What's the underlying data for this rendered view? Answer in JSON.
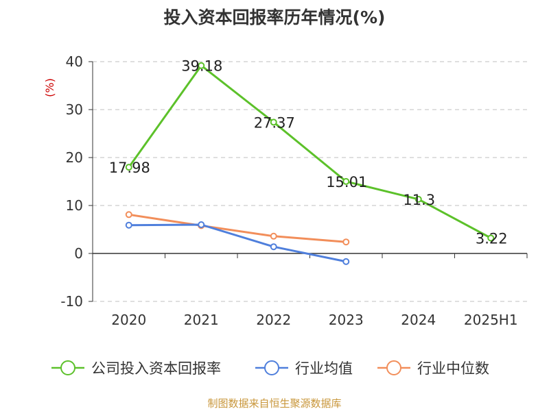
{
  "title": "投入资本回报率历年情况(%)",
  "source": "制图数据来自恒生聚源数据库",
  "chart_data": {
    "type": "line",
    "title": "投入资本回报率历年情况(%)",
    "ylabel": "(%)",
    "xlabel": "",
    "categories": [
      "2020",
      "2021",
      "2022",
      "2023",
      "2024",
      "2025H1"
    ],
    "ylim": [
      -10,
      40
    ],
    "yticks": [
      -10,
      0,
      10,
      20,
      30,
      40
    ],
    "grid": true,
    "legend": "bottom",
    "series": [
      {
        "name": "公司投入资本回报率",
        "color": "#5cc12a",
        "values": [
          17.98,
          39.18,
          27.37,
          15.01,
          11.3,
          3.22
        ],
        "labels": true
      },
      {
        "name": "行业均值",
        "color": "#4f7fdc",
        "values": [
          5.9,
          6.0,
          1.4,
          -1.7,
          null,
          null
        ],
        "labels": false
      },
      {
        "name": "行业中位数",
        "color": "#f28e5a",
        "values": [
          8.1,
          5.8,
          3.6,
          2.4,
          null,
          null
        ],
        "labels": false
      }
    ]
  }
}
